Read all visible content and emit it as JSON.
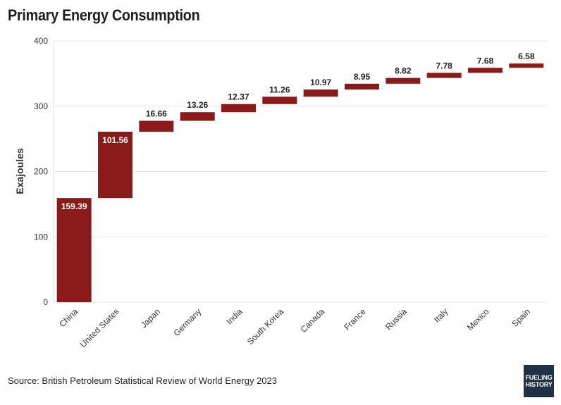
{
  "header": {
    "title": "Primary Energy Consumption"
  },
  "footer": {
    "source": "Source: British Petroleum Statistical Review of World Energy 2023"
  },
  "logo": {
    "line1": "FUELING",
    "line2": "HISTORY"
  },
  "chart_data": {
    "type": "bar",
    "variant": "waterfall",
    "title": "Primary Energy Consumption",
    "xlabel": "",
    "ylabel": "Exajoules",
    "ylim": [
      0,
      400
    ],
    "yticks": [
      0,
      100,
      200,
      300,
      400
    ],
    "grid": true,
    "bar_color": "#8b1a1a",
    "categories": [
      "China",
      "United States",
      "Japan",
      "Germany",
      "India",
      "South Korea",
      "Canada",
      "France",
      "Russia",
      "Italy",
      "Mexico",
      "Spain"
    ],
    "values": [
      159.39,
      101.56,
      16.66,
      13.26,
      12.37,
      11.26,
      10.97,
      8.95,
      8.82,
      7.78,
      7.68,
      6.58
    ],
    "labels": [
      "159.39",
      "101.56",
      "16.66",
      "13.26",
      "12.37",
      "11.26",
      "10.97",
      "8.95",
      "8.82",
      "7.78",
      "7.68",
      "6.58"
    ]
  }
}
